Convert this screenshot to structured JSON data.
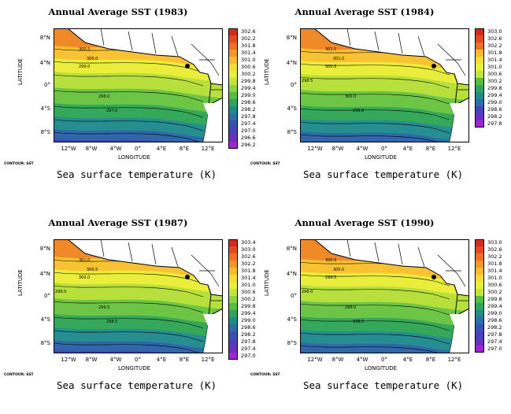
{
  "panels": [
    {
      "title": "Annual Average SST (1983)",
      "scale": [
        "302.6",
        "302.2",
        "301.8",
        "301.4",
        "301.0",
        "300.6",
        "300.2",
        "299.8",
        "299.4",
        "299.0",
        "298.6",
        "298.2",
        "297.8",
        "297.4",
        "297.0",
        "296.6",
        "296.2"
      ],
      "contours": [
        "300.5",
        "300.0",
        "299.0",
        "298.0",
        "297.0"
      ]
    },
    {
      "title": "Annual Average SST (1984)",
      "scale": [
        "303.0",
        "302.6",
        "302.2",
        "301.8",
        "301.4",
        "301.0",
        "300.6",
        "300.2",
        "299.8",
        "299.4",
        "299.0",
        "298.6",
        "298.2",
        "297.8"
      ],
      "contours": [
        "301.5",
        "301.0",
        "300.5",
        "300.0",
        "299.0",
        "298.5"
      ]
    },
    {
      "title": "Annual Average SST (1987)",
      "scale": [
        "303.4",
        "303.0",
        "302.6",
        "302.2",
        "301.8",
        "301.4",
        "301.0",
        "300.6",
        "300.2",
        "299.8",
        "299.4",
        "299.0",
        "298.6",
        "298.2",
        "297.8",
        "297.4",
        "297.0"
      ],
      "contours": [
        "301.0",
        "300.5",
        "300.0",
        "299.5",
        "298.5",
        "298.0"
      ]
    },
    {
      "title": "Annual Average SST (1990)",
      "scale": [
        "303.0",
        "302.6",
        "302.2",
        "301.8",
        "301.4",
        "301.0",
        "300.6",
        "300.2",
        "299.8",
        "299.4",
        "299.0",
        "298.6",
        "298.2",
        "297.8",
        "297.4",
        "297.0"
      ],
      "contours": [
        "300.5",
        "300.0",
        "299.5",
        "299.0",
        "298.5",
        "298.0"
      ]
    }
  ],
  "axes": {
    "ylabel": "LATITUDE",
    "xlabel": "LONGITUDE",
    "yticks": [
      "8°N",
      "4°N",
      "0°",
      "4°S",
      "8°S"
    ],
    "xticks": [
      "12°W",
      "8°W",
      "4°W",
      "0°",
      "4°E",
      "8°E",
      "12°E"
    ]
  },
  "contour_note": "CONTOUR: SST",
  "caption": "Sea surface temperature (K)",
  "colors": {
    "scale_top_to_bottom": [
      "#d42b1e",
      "#e34a21",
      "#ef6f24",
      "#f5962a",
      "#f9bb2f",
      "#f6dc37",
      "#e8ef3b",
      "#c4e43b",
      "#8fd23f",
      "#56bc45",
      "#2fa45a",
      "#1f8c86",
      "#2c6fa8",
      "#3653b4",
      "#4a3fbd",
      "#6a2fc3",
      "#a322d2"
    ]
  }
}
